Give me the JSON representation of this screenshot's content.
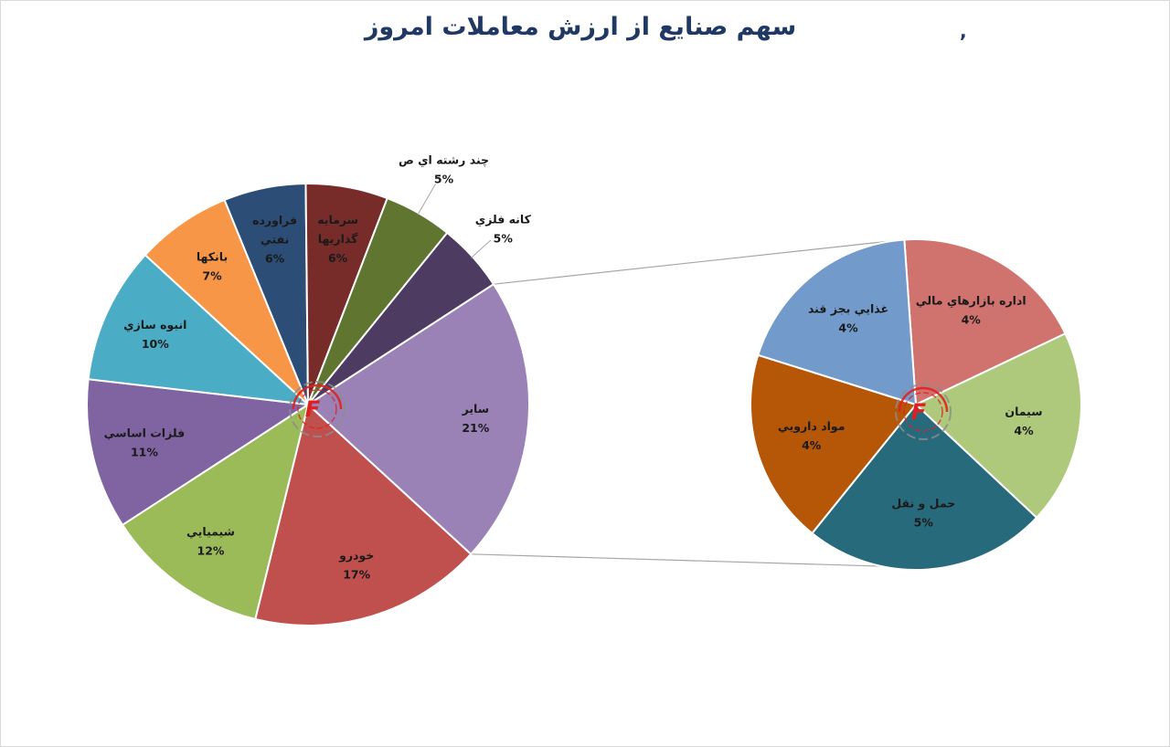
{
  "chart_data": [
    {
      "type": "pie",
      "title": "سهم صنايع از ارزش معاملات امروز",
      "slices": [
        {
          "label": "ساير",
          "value": 21,
          "display": "21%",
          "color": "#9a82b6"
        },
        {
          "label": "خودرو",
          "value": 17,
          "display": "17%",
          "color": "#c0504d"
        },
        {
          "label": "شيميايي",
          "value": 12,
          "display": "12%",
          "color": "#9bbb59"
        },
        {
          "label": "فلزات اساسي",
          "value": 11,
          "display": "11%",
          "color": "#8064a2"
        },
        {
          "label": "انبوه سازي",
          "value": 10,
          "display": "10%",
          "color": "#4bacc6"
        },
        {
          "label": "بانكها",
          "value": 7,
          "display": "7%",
          "color": "#f79646"
        },
        {
          "label": "فراورده نفتي",
          "lines": [
            "فراورده",
            "نفتي"
          ],
          "value": 6,
          "display": "6%",
          "color": "#2c4d75"
        },
        {
          "label": "سرمايه گذاريها",
          "lines": [
            "سرمايه",
            "گذاريها"
          ],
          "value": 6,
          "display": "6%",
          "color": "#772c2a"
        },
        {
          "label": "چند رشته اي ص",
          "value": 5,
          "display": "5%",
          "color": "#5f7530"
        },
        {
          "label": "كانه فلزي",
          "value": 5,
          "display": "5%",
          "color": "#4d3b62"
        }
      ]
    },
    {
      "type": "pie",
      "title": "",
      "slices": [
        {
          "label": "اداره بازارهاي مالي",
          "value": 4,
          "display": "4%",
          "color": "#d0726e"
        },
        {
          "label": "سيمان",
          "value": 4,
          "display": "4%",
          "color": "#aec97b"
        },
        {
          "label": "حمل و نقل",
          "value": 5,
          "display": "5%",
          "color": "#276a7c"
        },
        {
          "label": "مواد دارويي",
          "value": 4,
          "display": "4%",
          "color": "#b65708"
        },
        {
          "label": "غذايي بجز قند",
          "value": 4,
          "display": "4%",
          "color": "#729aca"
        }
      ]
    }
  ],
  "header": {
    "title": "سهم صنايع از ارزش معاملات امروز",
    "mark": ","
  },
  "colors": {
    "title": "#1f3864",
    "connector": "#a6a6a6",
    "logo_red": "#e02020",
    "logo_gray": "#8c8c8c"
  },
  "logo": {
    "icon": "f-brand-logo-icon",
    "letter": "F"
  }
}
